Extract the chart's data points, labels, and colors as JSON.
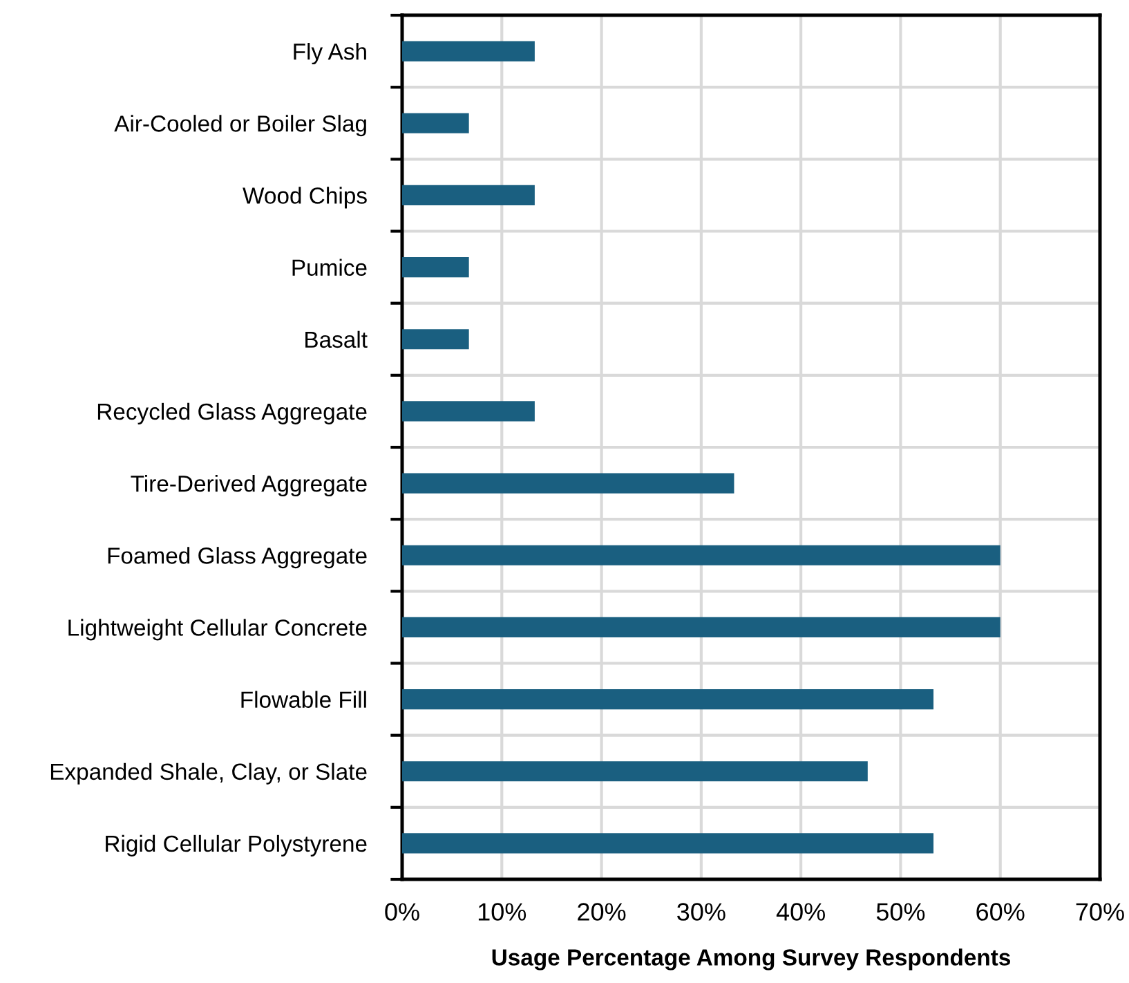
{
  "chart_data": {
    "type": "bar",
    "orientation": "horizontal",
    "xlabel": "Usage Percentage Among Survey Respondents",
    "categories": [
      "Fly Ash",
      "Air-Cooled or Boiler Slag",
      "Wood Chips",
      "Pumice",
      "Basalt",
      "Recycled Glass Aggregate",
      "Tire-Derived Aggregate",
      "Foamed Glass Aggregate",
      "Lightweight Cellular Concrete",
      "Flowable Fill",
      "Expanded Shale, Clay, or Slate",
      "Rigid Cellular Polystyrene"
    ],
    "values": [
      13.3,
      6.7,
      13.3,
      6.7,
      6.7,
      13.3,
      33.3,
      60,
      60,
      53.3,
      46.7,
      53.3
    ],
    "color": "#1a5f80",
    "xlim": [
      0,
      70
    ],
    "xticks": [
      {
        "value": 0,
        "label": "0%"
      },
      {
        "value": 10,
        "label": "10%"
      },
      {
        "value": 20,
        "label": "20%"
      },
      {
        "value": 30,
        "label": "30%"
      },
      {
        "value": 40,
        "label": "40%"
      },
      {
        "value": 50,
        "label": "50%"
      },
      {
        "value": 60,
        "label": "60%"
      },
      {
        "value": 70,
        "label": "70%"
      }
    ],
    "grid": true
  }
}
